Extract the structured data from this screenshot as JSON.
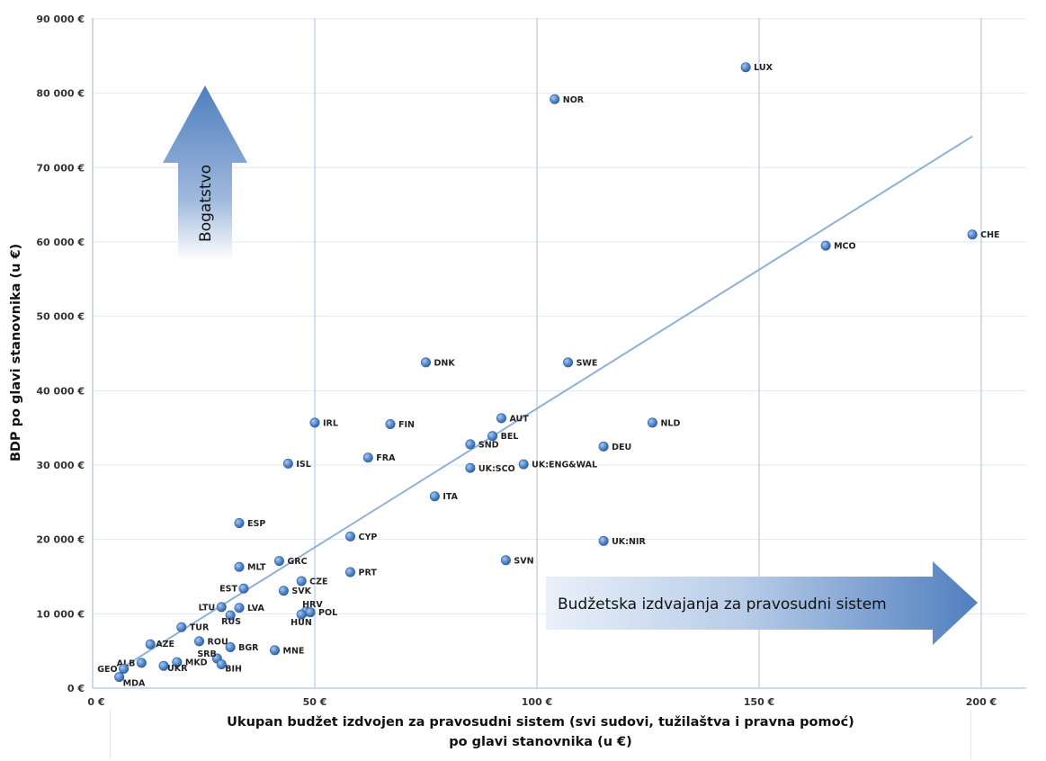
{
  "chart_data": {
    "type": "scatter",
    "xlabel_line1": "Ukupan  budžet izdvojen za pravosudni sistem (svi sudovi, tužilaštva i pravna pomoć)",
    "xlabel_line2": "po glavi stanovnika (u €)",
    "ylabel": "BDP po glavi stanovnika (u €)",
    "xlim": [
      0,
      210
    ],
    "ylim": [
      0,
      90000
    ],
    "grid": true,
    "x_ticks": [
      {
        "value": 0,
        "label": "0 €"
      },
      {
        "value": 50,
        "label": "50 €"
      },
      {
        "value": 100,
        "label": "100 €"
      },
      {
        "value": 150,
        "label": "150 €"
      },
      {
        "value": 200,
        "label": "200 €"
      }
    ],
    "y_ticks": [
      {
        "value": 0,
        "label": "0 €"
      },
      {
        "value": 10000,
        "label": "10 000 €"
      },
      {
        "value": 20000,
        "label": "20 000 €"
      },
      {
        "value": 30000,
        "label": "30 000 €"
      },
      {
        "value": 40000,
        "label": "40 000 €"
      },
      {
        "value": 50000,
        "label": "50 000 €"
      },
      {
        "value": 60000,
        "label": "60 000 €"
      },
      {
        "value": 70000,
        "label": "70 000 €"
      },
      {
        "value": 80000,
        "label": "80 000 €"
      },
      {
        "value": 90000,
        "label": "90 000 €"
      }
    ],
    "points": [
      {
        "label": "LUX",
        "x": 147,
        "y": 83500
      },
      {
        "label": "NOR",
        "x": 104,
        "y": 79200
      },
      {
        "label": "CHE",
        "x": 198,
        "y": 61000
      },
      {
        "label": "MCO",
        "x": 165,
        "y": 59500
      },
      {
        "label": "DNK",
        "x": 75,
        "y": 43800
      },
      {
        "label": "SWE",
        "x": 107,
        "y": 43800
      },
      {
        "label": "IRL",
        "x": 50,
        "y": 35700
      },
      {
        "label": "FIN",
        "x": 67,
        "y": 35500
      },
      {
        "label": "AUT",
        "x": 92,
        "y": 36300
      },
      {
        "label": "NLD",
        "x": 126,
        "y": 35700
      },
      {
        "label": "BEL",
        "x": 90,
        "y": 33900
      },
      {
        "label": "SND",
        "x": 85,
        "y": 32800
      },
      {
        "label": "DEU",
        "x": 115,
        "y": 32500
      },
      {
        "label": "FRA",
        "x": 62,
        "y": 31000
      },
      {
        "label": "ISL",
        "x": 44,
        "y": 30200
      },
      {
        "label": "UK:SCO",
        "x": 85,
        "y": 29600
      },
      {
        "label": "UK:ENG&WAL",
        "x": 97,
        "y": 30100
      },
      {
        "label": "ITA",
        "x": 77,
        "y": 25800
      },
      {
        "label": "ESP",
        "x": 33,
        "y": 22200
      },
      {
        "label": "CYP",
        "x": 58,
        "y": 20400
      },
      {
        "label": "UK:NIR",
        "x": 115,
        "y": 19800
      },
      {
        "label": "SVN",
        "x": 93,
        "y": 17200
      },
      {
        "label": "GRC",
        "x": 42,
        "y": 17100
      },
      {
        "label": "MLT",
        "x": 33,
        "y": 16300
      },
      {
        "label": "PRT",
        "x": 58,
        "y": 15600
      },
      {
        "label": "CZE",
        "x": 47,
        "y": 14400
      },
      {
        "label": "EST",
        "x": 34,
        "y": 13400
      },
      {
        "label": "SVK",
        "x": 43,
        "y": 13100
      },
      {
        "label": "LTU",
        "x": 29,
        "y": 10900
      },
      {
        "label": "LVA",
        "x": 33,
        "y": 10800
      },
      {
        "label": "HRV",
        "x": 48,
        "y": 10300
      },
      {
        "label": "POL",
        "x": 49,
        "y": 10200
      },
      {
        "label": "RUS",
        "x": 31,
        "y": 9800
      },
      {
        "label": "HUN",
        "x": 47,
        "y": 9900
      },
      {
        "label": "TUR",
        "x": 20,
        "y": 8200
      },
      {
        "label": "ROU",
        "x": 24,
        "y": 6300
      },
      {
        "label": "AZE",
        "x": 13,
        "y": 5900
      },
      {
        "label": "BGR",
        "x": 31,
        "y": 5500
      },
      {
        "label": "MNE",
        "x": 41,
        "y": 5100
      },
      {
        "label": "SRB",
        "x": 28,
        "y": 4000
      },
      {
        "label": "MKD",
        "x": 19,
        "y": 3500
      },
      {
        "label": "ALB",
        "x": 11,
        "y": 3400
      },
      {
        "label": "BIH",
        "x": 29,
        "y": 3200
      },
      {
        "label": "UKR",
        "x": 16,
        "y": 3000
      },
      {
        "label": "GEO",
        "x": 7,
        "y": 2600
      },
      {
        "label": "MDA",
        "x": 6,
        "y": 1500
      }
    ],
    "trendline": {
      "x": [
        6,
        198
      ],
      "y": [
        2500,
        74200
      ]
    },
    "annotations": [
      {
        "text": "Bogatstvo",
        "direction": "up"
      },
      {
        "text": "Budžetska izdvajanja za pravosudni sistem",
        "direction": "right"
      }
    ]
  }
}
